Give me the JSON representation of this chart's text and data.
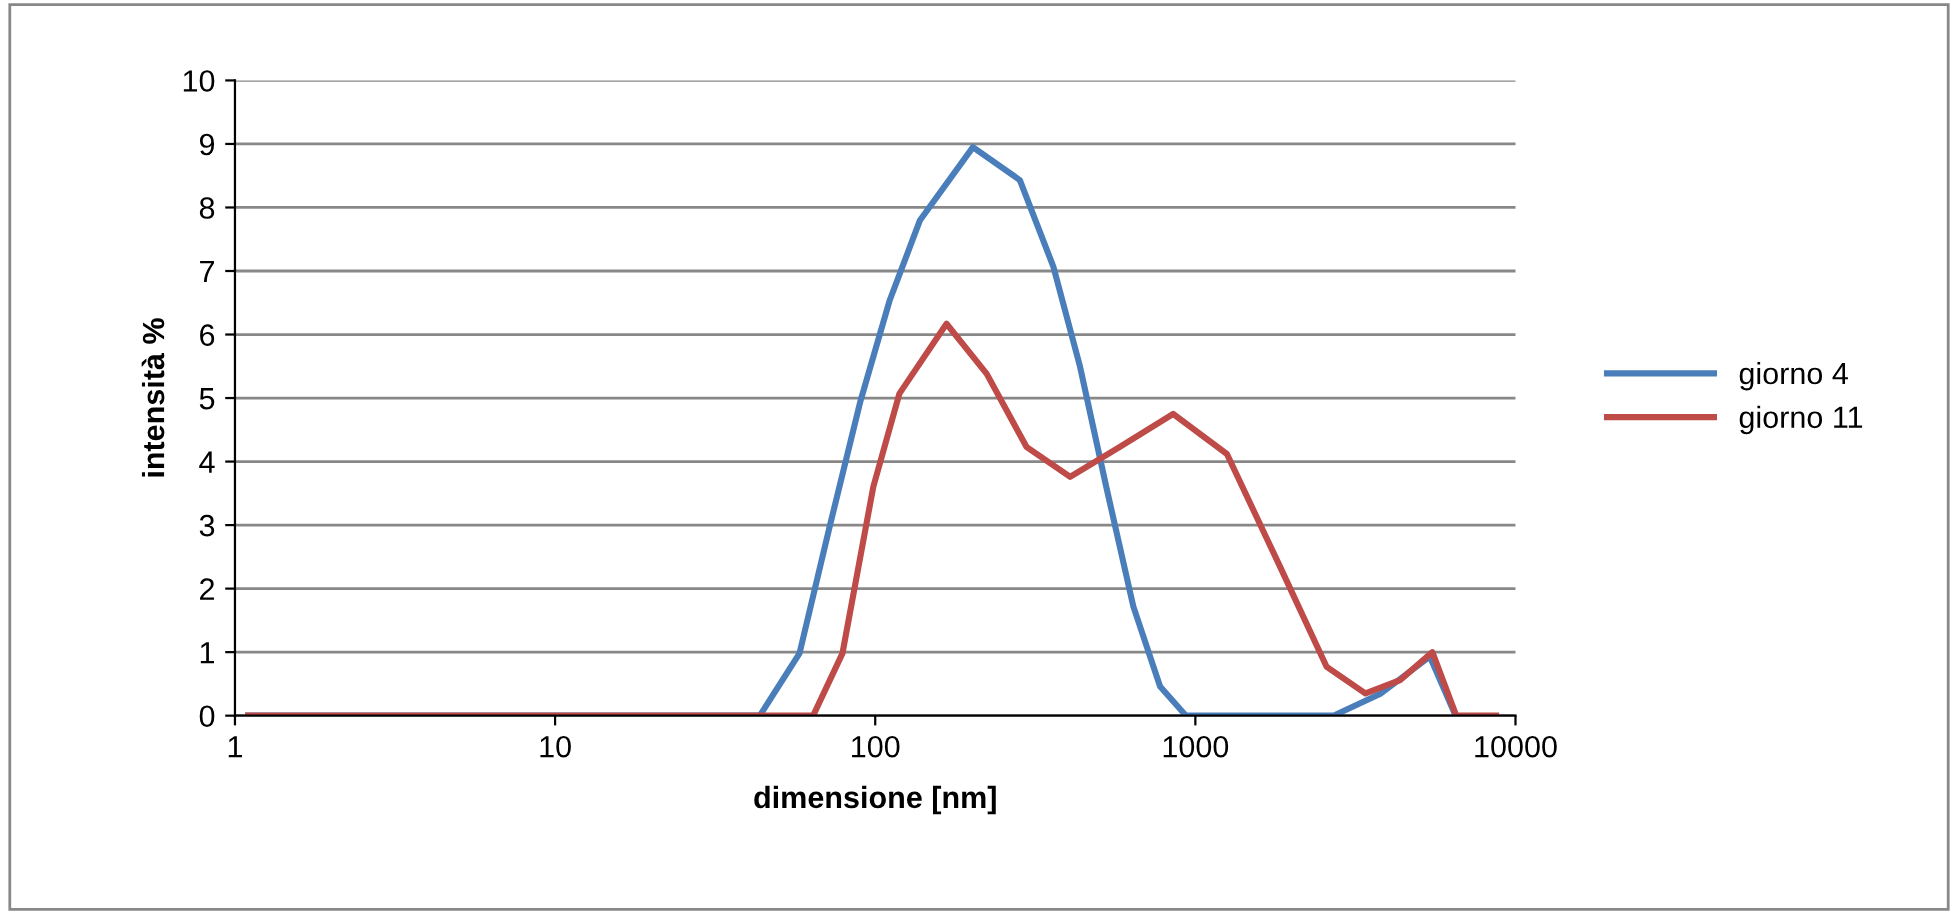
{
  "chart_data": {
    "type": "line",
    "xlabel": "dimensione [nm]",
    "ylabel": "intensità %",
    "log": "x",
    "grid": "y",
    "legend": "right",
    "marker": "none",
    "line_style": "solid",
    "xlim": [
      1,
      10000
    ],
    "xticks": [
      1,
      10,
      100,
      1000,
      10000
    ],
    "ylim": [
      0,
      10
    ],
    "yticks": [
      0,
      1,
      2,
      3,
      4,
      5,
      6,
      7,
      8,
      9,
      10
    ],
    "series": [
      {
        "name": "giorno 4",
        "color": "#4a7ebb",
        "x": [
          1.1,
          43.6,
          58,
          72,
          90,
          111,
          138,
          202,
          283,
          360,
          436,
          527,
          640,
          776,
          935,
          2700,
          3800,
          5400,
          6500
        ],
        "values": [
          0,
          0,
          0.98,
          2.97,
          4.96,
          6.54,
          7.8,
          8.95,
          8.43,
          7.07,
          5.5,
          3.6,
          1.72,
          0.46,
          0,
          0,
          0.35,
          0.93,
          0
        ]
      },
      {
        "name": "giorno 11",
        "color": "#be4b48",
        "x": [
          1.1,
          64,
          79,
          98.6,
          119,
          167,
          223,
          297,
          406,
          581,
          853,
          1255,
          1837,
          2570,
          3400,
          4360,
          5500,
          6530,
          8700
        ],
        "values": [
          0,
          0,
          0.98,
          3.6,
          5.07,
          6.17,
          5.38,
          4.23,
          3.76,
          4.23,
          4.75,
          4.12,
          2.35,
          0.77,
          0.35,
          0.56,
          1.0,
          0,
          0
        ]
      }
    ]
  }
}
